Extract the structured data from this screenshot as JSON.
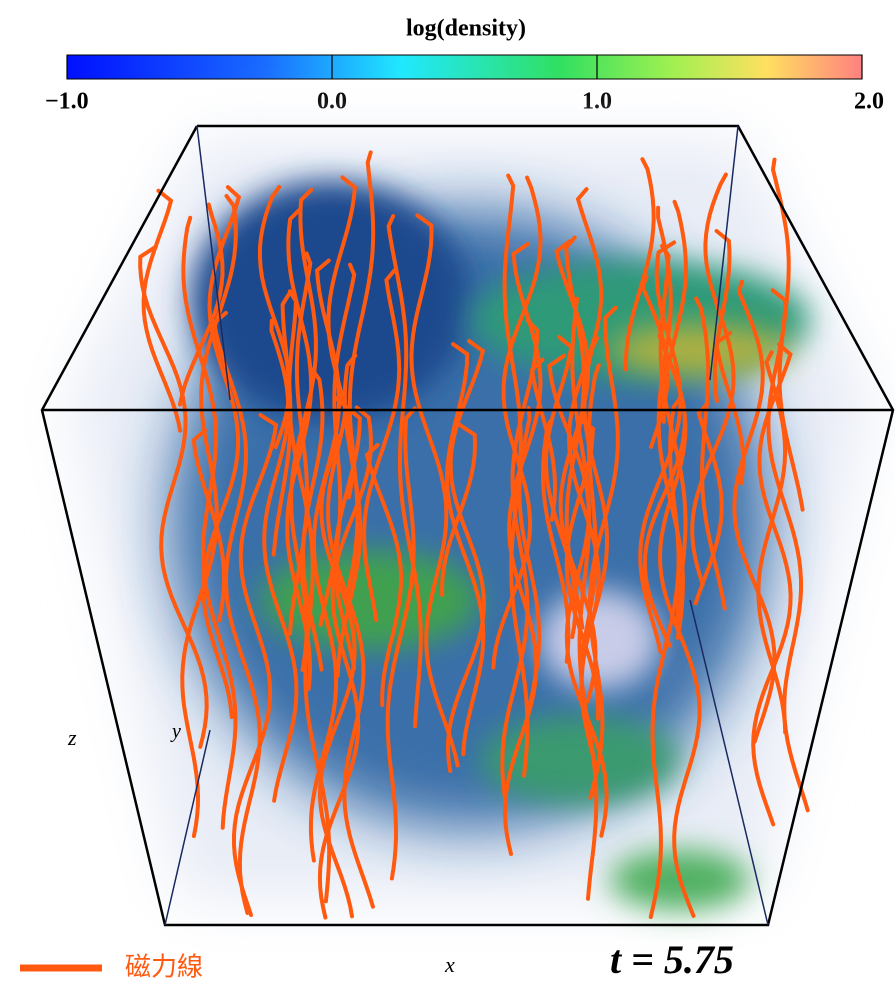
{
  "colorbar": {
    "label": "log(density)",
    "lim": [
      -1,
      2
    ],
    "ticks": [
      {
        "value": -1,
        "label": "−1.0"
      },
      {
        "value": 0,
        "label": "0.0"
      },
      {
        "value": 1,
        "label": "1.0"
      },
      {
        "value": 2,
        "label": "2.0"
      }
    ]
  },
  "axes": {
    "x": "x",
    "y": "y",
    "z": "z"
  },
  "legend": {
    "label": "磁力線"
  },
  "time_label": "t = 5.75"
}
